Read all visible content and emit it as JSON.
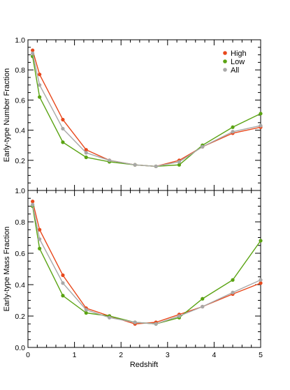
{
  "figure": {
    "xlabel": "Redshift",
    "xlim": [
      0,
      5
    ],
    "x_ticks": [
      "0",
      "1",
      "2",
      "3",
      "4",
      "5"
    ]
  },
  "legend": {
    "placement": "top-right",
    "items": [
      {
        "name": "High",
        "color": "#E8481C"
      },
      {
        "name": "Low",
        "color": "#5AA312"
      },
      {
        "name": "All",
        "color": "#A8A8A8"
      }
    ]
  },
  "chart_data": [
    {
      "type": "line",
      "panel": "top",
      "ylabel": "Early-type Number Fraction",
      "xlabel": "",
      "xlim": [
        0,
        5
      ],
      "ylim": [
        0.0,
        1.0
      ],
      "y_ticks": [
        "0.2",
        "0.4",
        "0.6",
        "0.8",
        "1.0"
      ],
      "grid": false,
      "x": [
        0.1,
        0.25,
        0.75,
        1.25,
        1.75,
        2.3,
        2.75,
        3.25,
        3.75,
        4.4,
        5.0
      ],
      "series": [
        {
          "name": "High",
          "color": "#E8481C",
          "values": [
            0.93,
            0.77,
            0.47,
            0.27,
            0.2,
            0.17,
            0.16,
            0.2,
            0.29,
            0.38,
            0.42
          ]
        },
        {
          "name": "Low",
          "color": "#5AA312",
          "values": [
            0.89,
            0.62,
            0.32,
            0.22,
            0.19,
            0.17,
            0.16,
            0.17,
            0.3,
            0.42,
            0.51
          ]
        },
        {
          "name": "All",
          "color": "#A8A8A8",
          "values": [
            0.91,
            0.7,
            0.41,
            0.25,
            0.2,
            0.17,
            0.16,
            0.19,
            0.29,
            0.39,
            0.43
          ]
        }
      ]
    },
    {
      "type": "line",
      "panel": "bottom",
      "ylabel": "Early-type Mass Fraction",
      "xlabel": "Redshift",
      "xlim": [
        0,
        5
      ],
      "ylim": [
        0.0,
        1.0
      ],
      "y_ticks": [
        "0.0",
        "0.2",
        "0.4",
        "0.6",
        "0.8",
        "1.0"
      ],
      "grid": false,
      "x": [
        0.1,
        0.25,
        0.75,
        1.25,
        1.75,
        2.3,
        2.75,
        3.25,
        3.75,
        4.4,
        5.0
      ],
      "series": [
        {
          "name": "High",
          "color": "#E8481C",
          "values": [
            0.93,
            0.75,
            0.46,
            0.25,
            0.2,
            0.15,
            0.16,
            0.21,
            0.26,
            0.34,
            0.41
          ]
        },
        {
          "name": "Low",
          "color": "#5AA312",
          "values": [
            0.9,
            0.63,
            0.33,
            0.22,
            0.2,
            0.16,
            0.15,
            0.19,
            0.31,
            0.43,
            0.68
          ]
        },
        {
          "name": "All",
          "color": "#A8A8A8",
          "values": [
            0.91,
            0.69,
            0.41,
            0.24,
            0.19,
            0.16,
            0.15,
            0.2,
            0.26,
            0.35,
            0.43
          ]
        }
      ]
    }
  ]
}
